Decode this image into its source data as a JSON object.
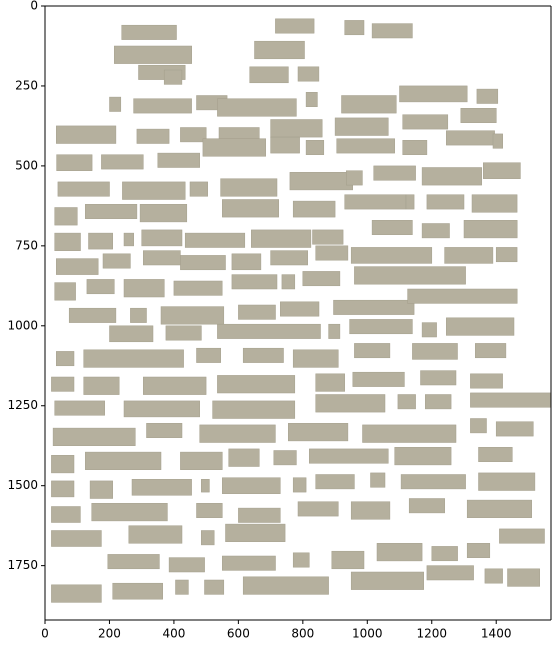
{
  "chart_data": {
    "type": "image",
    "x_ticks": [
      0,
      200,
      400,
      600,
      800,
      1000,
      1200,
      1400
    ],
    "y_ticks": [
      0,
      250,
      500,
      750,
      1000,
      1250,
      1500,
      1750
    ],
    "xlim": [
      0,
      1570
    ],
    "ylim": [
      1920,
      0
    ],
    "y_inverted": true,
    "grid": false,
    "colors": {
      "block_fill": "#b5b09e",
      "block_edge": "#a39e8b",
      "axis": "#000000",
      "background": "#ffffff"
    },
    "blocks": [
      [
        238,
        60,
        170,
        45
      ],
      [
        715,
        40,
        120,
        45
      ],
      [
        930,
        45,
        60,
        45
      ],
      [
        1015,
        55,
        125,
        45
      ],
      [
        215,
        125,
        240,
        55
      ],
      [
        650,
        110,
        155,
        55
      ],
      [
        290,
        185,
        145,
        45
      ],
      [
        370,
        200,
        55,
        45
      ],
      [
        635,
        190,
        120,
        50
      ],
      [
        785,
        190,
        65,
        45
      ],
      [
        200,
        285,
        35,
        45
      ],
      [
        275,
        290,
        180,
        45
      ],
      [
        470,
        280,
        95,
        45
      ],
      [
        535,
        290,
        245,
        55
      ],
      [
        810,
        270,
        35,
        45
      ],
      [
        920,
        280,
        170,
        55
      ],
      [
        1100,
        250,
        210,
        50
      ],
      [
        1340,
        260,
        65,
        45
      ],
      [
        35,
        375,
        185,
        55
      ],
      [
        285,
        385,
        100,
        45
      ],
      [
        420,
        380,
        80,
        45
      ],
      [
        540,
        380,
        125,
        45
      ],
      [
        700,
        355,
        160,
        55
      ],
      [
        900,
        350,
        165,
        55
      ],
      [
        1110,
        340,
        140,
        45
      ],
      [
        1290,
        320,
        110,
        45
      ],
      [
        36,
        465,
        110,
        50
      ],
      [
        175,
        465,
        130,
        45
      ],
      [
        350,
        460,
        130,
        45
      ],
      [
        490,
        415,
        195,
        55
      ],
      [
        700,
        410,
        90,
        50
      ],
      [
        810,
        420,
        55,
        45
      ],
      [
        905,
        415,
        180,
        45
      ],
      [
        1110,
        420,
        75,
        45
      ],
      [
        1245,
        390,
        150,
        45
      ],
      [
        1390,
        400,
        30,
        45
      ],
      [
        40,
        550,
        160,
        45
      ],
      [
        240,
        550,
        195,
        55
      ],
      [
        450,
        550,
        55,
        45
      ],
      [
        545,
        540,
        175,
        55
      ],
      [
        760,
        520,
        195,
        55
      ],
      [
        935,
        515,
        50,
        45
      ],
      [
        1020,
        500,
        130,
        45
      ],
      [
        1170,
        505,
        185,
        55
      ],
      [
        1360,
        490,
        115,
        50
      ],
      [
        30,
        630,
        70,
        55
      ],
      [
        125,
        620,
        160,
        45
      ],
      [
        295,
        620,
        145,
        55
      ],
      [
        550,
        605,
        175,
        55
      ],
      [
        770,
        610,
        130,
        50
      ],
      [
        930,
        590,
        190,
        45
      ],
      [
        1120,
        590,
        25,
        45
      ],
      [
        1185,
        590,
        115,
        45
      ],
      [
        1325,
        590,
        140,
        55
      ],
      [
        30,
        710,
        80,
        55
      ],
      [
        135,
        710,
        75,
        50
      ],
      [
        245,
        710,
        30,
        40
      ],
      [
        300,
        700,
        125,
        50
      ],
      [
        435,
        710,
        185,
        45
      ],
      [
        640,
        700,
        185,
        55
      ],
      [
        830,
        700,
        95,
        45
      ],
      [
        1015,
        670,
        125,
        45
      ],
      [
        1170,
        680,
        85,
        45
      ],
      [
        1300,
        670,
        165,
        55
      ],
      [
        35,
        790,
        130,
        50
      ],
      [
        180,
        775,
        85,
        45
      ],
      [
        305,
        765,
        115,
        45
      ],
      [
        420,
        780,
        140,
        45
      ],
      [
        580,
        775,
        90,
        50
      ],
      [
        700,
        765,
        115,
        45
      ],
      [
        840,
        750,
        100,
        45
      ],
      [
        950,
        755,
        250,
        50
      ],
      [
        1240,
        755,
        150,
        50
      ],
      [
        1400,
        755,
        65,
        45
      ],
      [
        30,
        865,
        65,
        55
      ],
      [
        130,
        855,
        85,
        45
      ],
      [
        245,
        855,
        125,
        55
      ],
      [
        400,
        860,
        150,
        45
      ],
      [
        580,
        840,
        140,
        45
      ],
      [
        735,
        840,
        40,
        45
      ],
      [
        800,
        830,
        115,
        45
      ],
      [
        960,
        815,
        345,
        55
      ],
      [
        1300,
        820,
        0,
        0
      ],
      [
        75,
        945,
        145,
        45
      ],
      [
        265,
        945,
        50,
        45
      ],
      [
        360,
        940,
        195,
        55
      ],
      [
        600,
        935,
        115,
        45
      ],
      [
        730,
        925,
        120,
        45
      ],
      [
        895,
        920,
        250,
        45
      ],
      [
        1125,
        885,
        340,
        45
      ],
      [
        200,
        1000,
        135,
        50
      ],
      [
        375,
        1000,
        110,
        45
      ],
      [
        535,
        995,
        320,
        45
      ],
      [
        880,
        995,
        35,
        45
      ],
      [
        945,
        980,
        195,
        45
      ],
      [
        1170,
        990,
        45,
        45
      ],
      [
        1245,
        975,
        210,
        55
      ],
      [
        35,
        1080,
        55,
        45
      ],
      [
        120,
        1075,
        310,
        55
      ],
      [
        470,
        1070,
        75,
        45
      ],
      [
        615,
        1070,
        125,
        45
      ],
      [
        770,
        1075,
        140,
        55
      ],
      [
        960,
        1055,
        110,
        45
      ],
      [
        1140,
        1055,
        140,
        50
      ],
      [
        1335,
        1055,
        95,
        45
      ],
      [
        20,
        1160,
        70,
        45
      ],
      [
        120,
        1160,
        110,
        55
      ],
      [
        305,
        1160,
        195,
        55
      ],
      [
        535,
        1155,
        240,
        55
      ],
      [
        840,
        1150,
        90,
        55
      ],
      [
        955,
        1145,
        160,
        45
      ],
      [
        1165,
        1140,
        110,
        45
      ],
      [
        1320,
        1150,
        100,
        45
      ],
      [
        30,
        1235,
        155,
        45
      ],
      [
        245,
        1235,
        235,
        50
      ],
      [
        520,
        1235,
        255,
        55
      ],
      [
        840,
        1215,
        215,
        55
      ],
      [
        1095,
        1215,
        55,
        45
      ],
      [
        1180,
        1215,
        80,
        45
      ],
      [
        1320,
        1210,
        250,
        45
      ],
      [
        25,
        1320,
        255,
        55
      ],
      [
        315,
        1305,
        110,
        45
      ],
      [
        480,
        1310,
        235,
        55
      ],
      [
        755,
        1305,
        185,
        55
      ],
      [
        985,
        1310,
        290,
        55
      ],
      [
        1320,
        1290,
        50,
        45
      ],
      [
        1400,
        1300,
        115,
        45
      ],
      [
        20,
        1405,
        70,
        55
      ],
      [
        125,
        1395,
        235,
        55
      ],
      [
        420,
        1395,
        130,
        55
      ],
      [
        570,
        1385,
        95,
        55
      ],
      [
        710,
        1390,
        70,
        45
      ],
      [
        820,
        1385,
        245,
        45
      ],
      [
        1085,
        1380,
        175,
        55
      ],
      [
        1345,
        1380,
        105,
        45
      ],
      [
        20,
        1485,
        70,
        50
      ],
      [
        140,
        1485,
        70,
        55
      ],
      [
        270,
        1480,
        185,
        50
      ],
      [
        485,
        1480,
        25,
        40
      ],
      [
        550,
        1475,
        180,
        50
      ],
      [
        770,
        1475,
        40,
        45
      ],
      [
        840,
        1465,
        120,
        45
      ],
      [
        1010,
        1460,
        45,
        45
      ],
      [
        1105,
        1465,
        200,
        45
      ],
      [
        1345,
        1460,
        175,
        55
      ],
      [
        20,
        1565,
        90,
        50
      ],
      [
        145,
        1555,
        235,
        55
      ],
      [
        470,
        1555,
        80,
        45
      ],
      [
        600,
        1570,
        130,
        45
      ],
      [
        785,
        1550,
        125,
        45
      ],
      [
        950,
        1550,
        120,
        55
      ],
      [
        1130,
        1540,
        110,
        45
      ],
      [
        1310,
        1545,
        200,
        55
      ],
      [
        20,
        1640,
        155,
        50
      ],
      [
        260,
        1625,
        165,
        55
      ],
      [
        485,
        1640,
        40,
        45
      ],
      [
        560,
        1620,
        185,
        55
      ],
      [
        1410,
        1635,
        140,
        45
      ],
      [
        195,
        1715,
        160,
        45
      ],
      [
        385,
        1725,
        110,
        45
      ],
      [
        550,
        1720,
        165,
        45
      ],
      [
        770,
        1710,
        50,
        45
      ],
      [
        890,
        1705,
        100,
        55
      ],
      [
        1030,
        1680,
        140,
        55
      ],
      [
        1200,
        1690,
        80,
        45
      ],
      [
        1310,
        1680,
        70,
        45
      ],
      [
        20,
        1810,
        155,
        55
      ],
      [
        210,
        1805,
        155,
        50
      ],
      [
        405,
        1795,
        40,
        45
      ],
      [
        495,
        1795,
        60,
        45
      ],
      [
        615,
        1785,
        265,
        55
      ],
      [
        950,
        1770,
        225,
        55
      ],
      [
        1185,
        1750,
        145,
        45
      ],
      [
        1365,
        1760,
        55,
        45
      ],
      [
        1435,
        1760,
        100,
        55
      ]
    ]
  }
}
